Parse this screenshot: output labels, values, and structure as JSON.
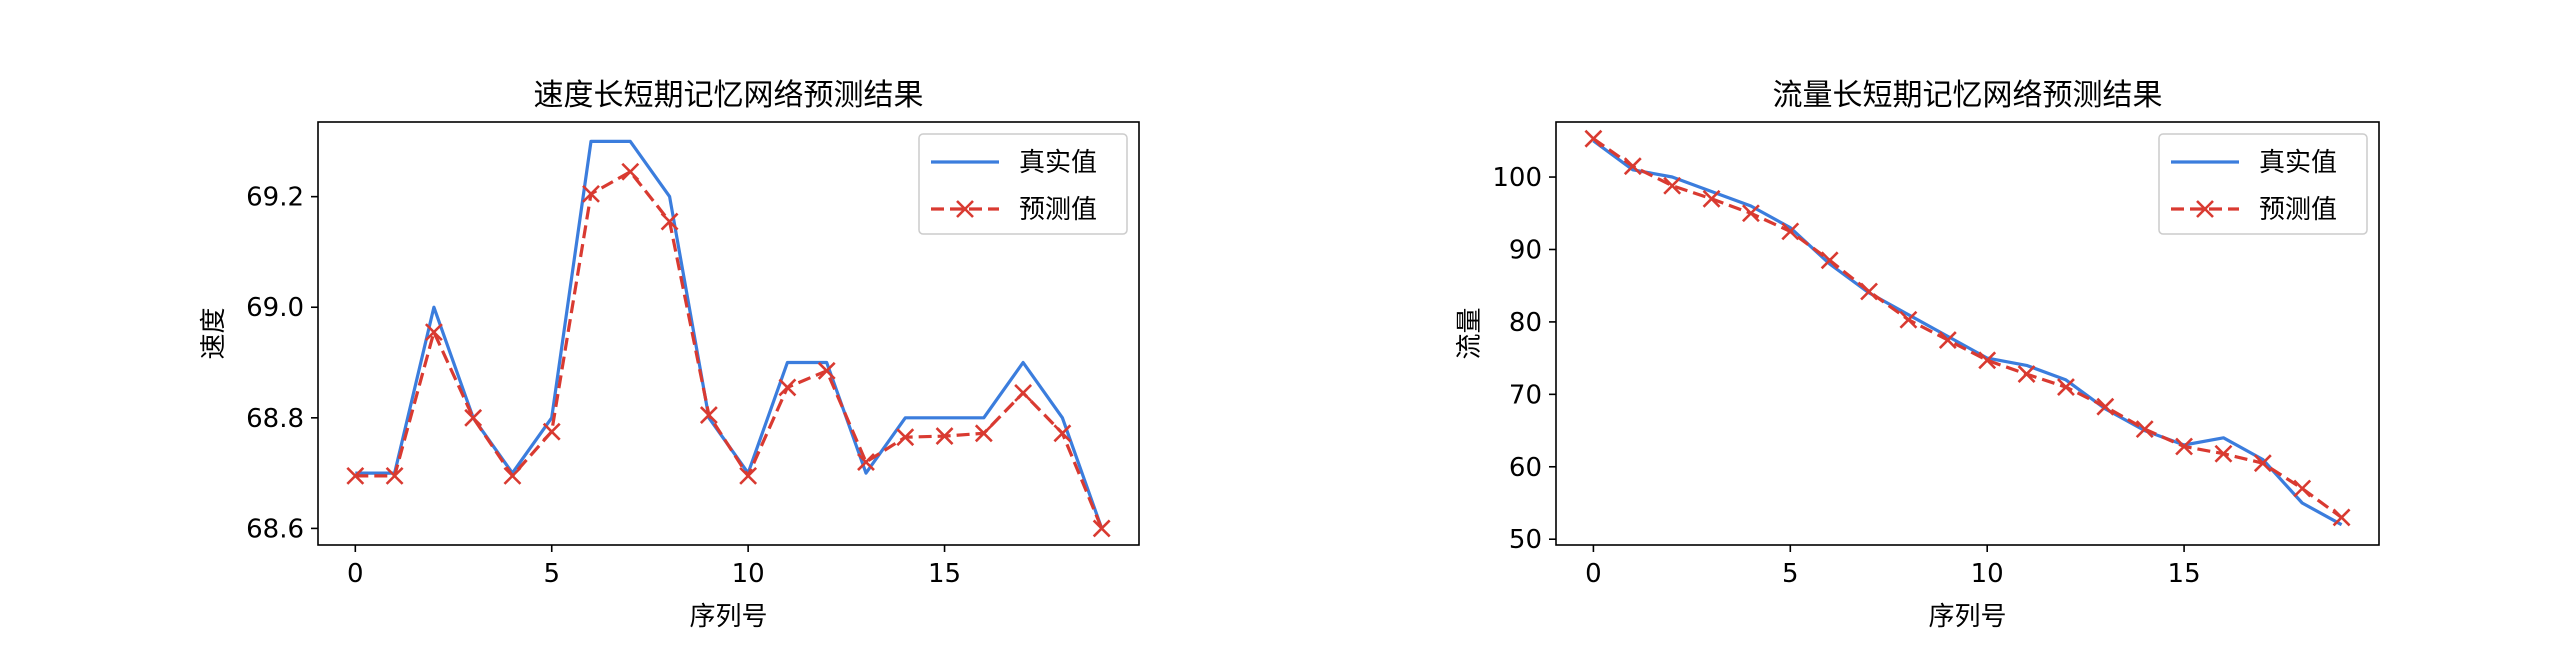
{
  "chart_data": [
    {
      "type": "line",
      "title": "速度长短期记忆网络预测结果",
      "xlabel": "序列号",
      "ylabel": "速度",
      "xlim": [
        -0.95,
        19.95
      ],
      "ylim": [
        68.57,
        69.335
      ],
      "xticks": [
        0,
        5,
        10,
        15
      ],
      "yticks": [
        68.6,
        68.8,
        69.0,
        69.2
      ],
      "ytick_labels": [
        "68.6",
        "68.8",
        "69.0",
        "69.2"
      ],
      "legend_position": "top-right",
      "x": [
        0,
        1,
        2,
        3,
        4,
        5,
        6,
        7,
        8,
        9,
        10,
        11,
        12,
        13,
        14,
        15,
        16,
        17,
        18,
        19
      ],
      "series": [
        {
          "name": "真实值",
          "color": "#3b7ddd",
          "style": "solid",
          "marker": "none",
          "values": [
            68.7,
            68.7,
            69.0,
            68.8,
            68.7,
            68.8,
            69.3,
            69.3,
            69.2,
            68.8,
            68.7,
            68.9,
            68.9,
            68.7,
            68.8,
            68.8,
            68.8,
            68.9,
            68.8,
            68.6
          ]
        },
        {
          "name": "预测值",
          "color": "#d93a31",
          "style": "dashed",
          "marker": "x",
          "values": [
            68.695,
            68.695,
            68.955,
            68.8,
            68.695,
            68.775,
            69.205,
            69.245,
            69.155,
            68.805,
            68.695,
            68.855,
            68.885,
            68.72,
            68.765,
            68.767,
            68.772,
            68.845,
            68.772,
            68.6
          ]
        }
      ]
    },
    {
      "type": "line",
      "title": "流量长短期记忆网络预测结果",
      "xlabel": "序列号",
      "ylabel": "流量",
      "xlim": [
        -0.95,
        19.95
      ],
      "ylim": [
        49.2,
        107.6
      ],
      "xticks": [
        0,
        5,
        10,
        15
      ],
      "yticks": [
        50,
        60,
        70,
        80,
        90,
        100
      ],
      "ytick_labels": [
        "50",
        "60",
        "70",
        "80",
        "90",
        "100"
      ],
      "legend_position": "top-right",
      "x": [
        0,
        1,
        2,
        3,
        4,
        5,
        6,
        7,
        8,
        9,
        10,
        11,
        12,
        13,
        14,
        15,
        16,
        17,
        18,
        19
      ],
      "series": [
        {
          "name": "真实值",
          "color": "#3b7ddd",
          "style": "solid",
          "marker": "none",
          "values": [
            105,
            101,
            100,
            98,
            96,
            93,
            88,
            84,
            81,
            78,
            75,
            74,
            72,
            68,
            65,
            63,
            64,
            61,
            55,
            52
          ]
        },
        {
          "name": "预测值",
          "color": "#d93a31",
          "style": "dashed",
          "marker": "x",
          "values": [
            105.3,
            101.5,
            98.8,
            97,
            95,
            92.5,
            88.5,
            84.2,
            80.3,
            77.5,
            74.7,
            72.8,
            71,
            68.3,
            65.2,
            62.8,
            61.8,
            60.5,
            57,
            53
          ]
        }
      ]
    }
  ]
}
